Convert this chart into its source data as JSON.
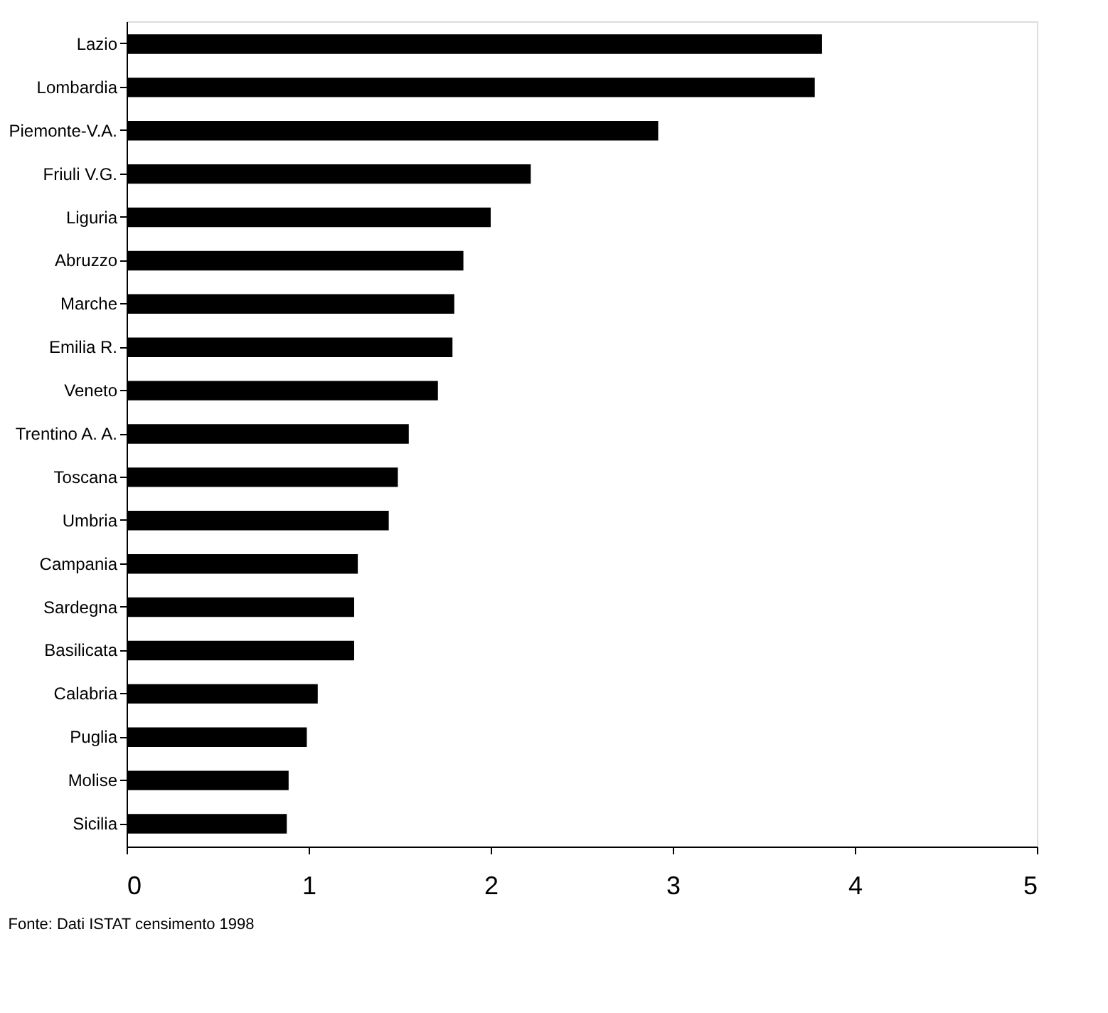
{
  "chart_data": {
    "type": "bar",
    "orientation": "horizontal",
    "categories": [
      "Lazio",
      "Lombardia",
      "Piemonte-V.A.",
      "Friuli V.G.",
      "Liguria",
      "Abruzzo",
      "Marche",
      "Emilia R.",
      "Veneto",
      "Trentino A. A.",
      "Toscana",
      "Umbria",
      "Campania",
      "Sardegna",
      "Basilicata",
      "Calabria",
      "Puglia",
      "Molise",
      "Sicilia"
    ],
    "values": [
      3.82,
      3.78,
      2.92,
      2.22,
      2.0,
      1.85,
      1.8,
      1.79,
      1.71,
      1.55,
      1.49,
      1.44,
      1.27,
      1.25,
      1.25,
      1.05,
      0.99,
      0.89,
      0.88
    ],
    "color": "#000000",
    "xlim": [
      0,
      5
    ],
    "xticks": [
      0,
      1,
      2,
      3,
      4,
      5
    ],
    "grid": false,
    "annotations": [
      "Fonte: Dati ISTAT censimento 1998"
    ]
  }
}
